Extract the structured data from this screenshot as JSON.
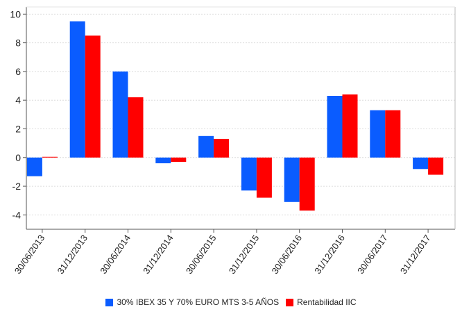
{
  "chart_data": {
    "type": "bar",
    "categories": [
      "30/06/2013",
      "31/12/2013",
      "30/06/2014",
      "31/12/2014",
      "30/06/2015",
      "31/12/2015",
      "30/06/2016",
      "31/12/2016",
      "30/06/2017",
      "31/12/2017"
    ],
    "series": [
      {
        "name": "30% IBEX 35 Y 70% EURO MTS 3-5 AÑOS",
        "color": "#0a5cff",
        "values": [
          -1.3,
          9.5,
          6.0,
          -0.4,
          1.5,
          -2.3,
          -3.1,
          4.3,
          3.3,
          -0.8
        ]
      },
      {
        "name": "Rentabilidad IIC",
        "color": "#ff0000",
        "values": [
          0.05,
          8.5,
          4.2,
          -0.3,
          1.3,
          -2.8,
          -3.7,
          4.4,
          3.3,
          -1.2
        ]
      }
    ],
    "yticks": [
      10,
      8,
      6,
      4,
      2,
      0,
      -2,
      -4
    ],
    "ylim": [
      -5,
      10.5
    ],
    "grid": true,
    "legend_position": "bottom"
  }
}
